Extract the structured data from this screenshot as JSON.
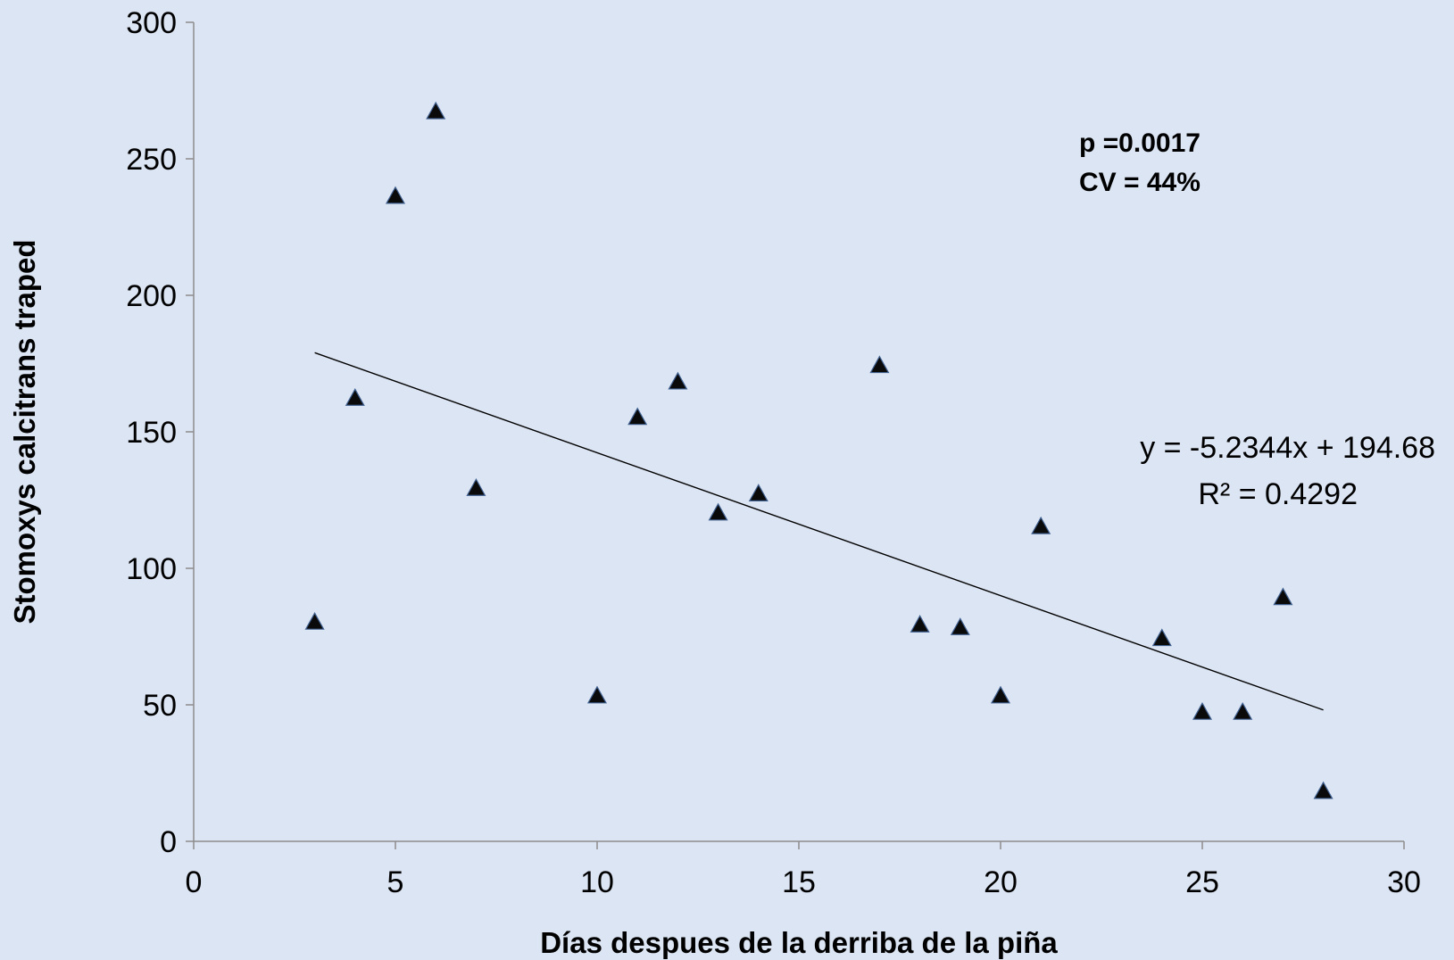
{
  "chart_data": {
    "type": "scatter",
    "title": "",
    "xlabel": "Días despues de la derriba de la piña",
    "ylabel": "Stomoxys calcitrans traped",
    "xlim": [
      0,
      30
    ],
    "ylim": [
      0,
      300
    ],
    "x_ticks": [
      0,
      5,
      10,
      15,
      20,
      25,
      30
    ],
    "y_ticks": [
      0,
      50,
      100,
      150,
      200,
      250,
      300
    ],
    "grid": false,
    "marker": "triangle",
    "marker_color": "#0a0a0a",
    "background_color": "#dce5f3",
    "series": [
      {
        "points": [
          {
            "x": 3,
            "y": 80
          },
          {
            "x": 4,
            "y": 162
          },
          {
            "x": 5,
            "y": 236
          },
          {
            "x": 6,
            "y": 267
          },
          {
            "x": 7,
            "y": 129
          },
          {
            "x": 10,
            "y": 53
          },
          {
            "x": 11,
            "y": 155
          },
          {
            "x": 12,
            "y": 168
          },
          {
            "x": 13,
            "y": 120
          },
          {
            "x": 14,
            "y": 127
          },
          {
            "x": 17,
            "y": 174
          },
          {
            "x": 18,
            "y": 79
          },
          {
            "x": 19,
            "y": 78
          },
          {
            "x": 20,
            "y": 53
          },
          {
            "x": 21,
            "y": 115
          },
          {
            "x": 24,
            "y": 74
          },
          {
            "x": 25,
            "y": 47
          },
          {
            "x": 26,
            "y": 47
          },
          {
            "x": 27,
            "y": 89
          },
          {
            "x": 28,
            "y": 18
          }
        ]
      }
    ],
    "trendline": {
      "type": "linear",
      "slope": -5.2344,
      "intercept": 194.68,
      "x_range": [
        3,
        28
      ],
      "equation_label": "y = -5.2344x + 194.68",
      "r2_label": "R² = 0.4292"
    },
    "annotations": {
      "p_value": "p =0.0017",
      "cv": "CV = 44%"
    }
  }
}
